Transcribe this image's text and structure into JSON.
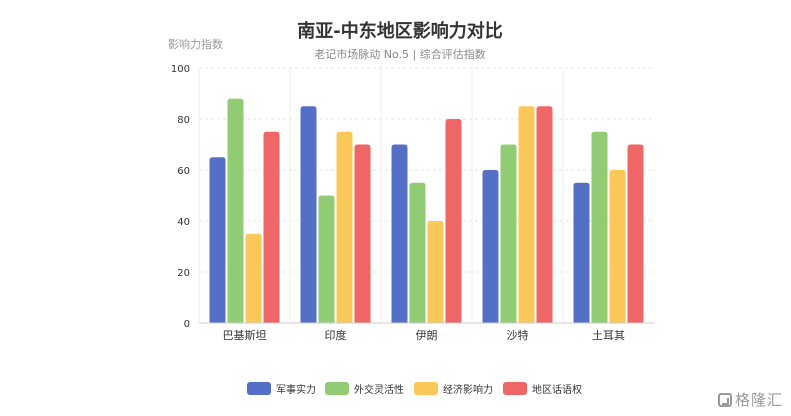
{
  "chart_data": {
    "type": "bar",
    "title": "南亚-中东地区影响力对比",
    "subtitle": "老记市场脉动 No.5 | 综合评估指数",
    "ylabel": "影响力指数",
    "xlabel": "",
    "ylim": [
      0,
      100
    ],
    "yticks": [
      0,
      20,
      40,
      60,
      80,
      100
    ],
    "grid": true,
    "legend_position": "bottom",
    "categories": [
      "巴基斯坦",
      "印度",
      "伊朗",
      "沙特",
      "土耳其"
    ],
    "series": [
      {
        "name": "军事实力",
        "color": "#5470c6",
        "values": [
          65,
          85,
          70,
          60,
          55
        ]
      },
      {
        "name": "外交灵活性",
        "color": "#91cc75",
        "values": [
          88,
          50,
          55,
          70,
          75
        ]
      },
      {
        "name": "经济影响力",
        "color": "#fac858",
        "values": [
          35,
          75,
          40,
          85,
          60
        ]
      },
      {
        "name": "地区话语权",
        "color": "#ee6666",
        "values": [
          75,
          70,
          80,
          85,
          70
        ]
      }
    ]
  },
  "watermark": {
    "text": "格隆汇",
    "icon": "logo-icon"
  }
}
